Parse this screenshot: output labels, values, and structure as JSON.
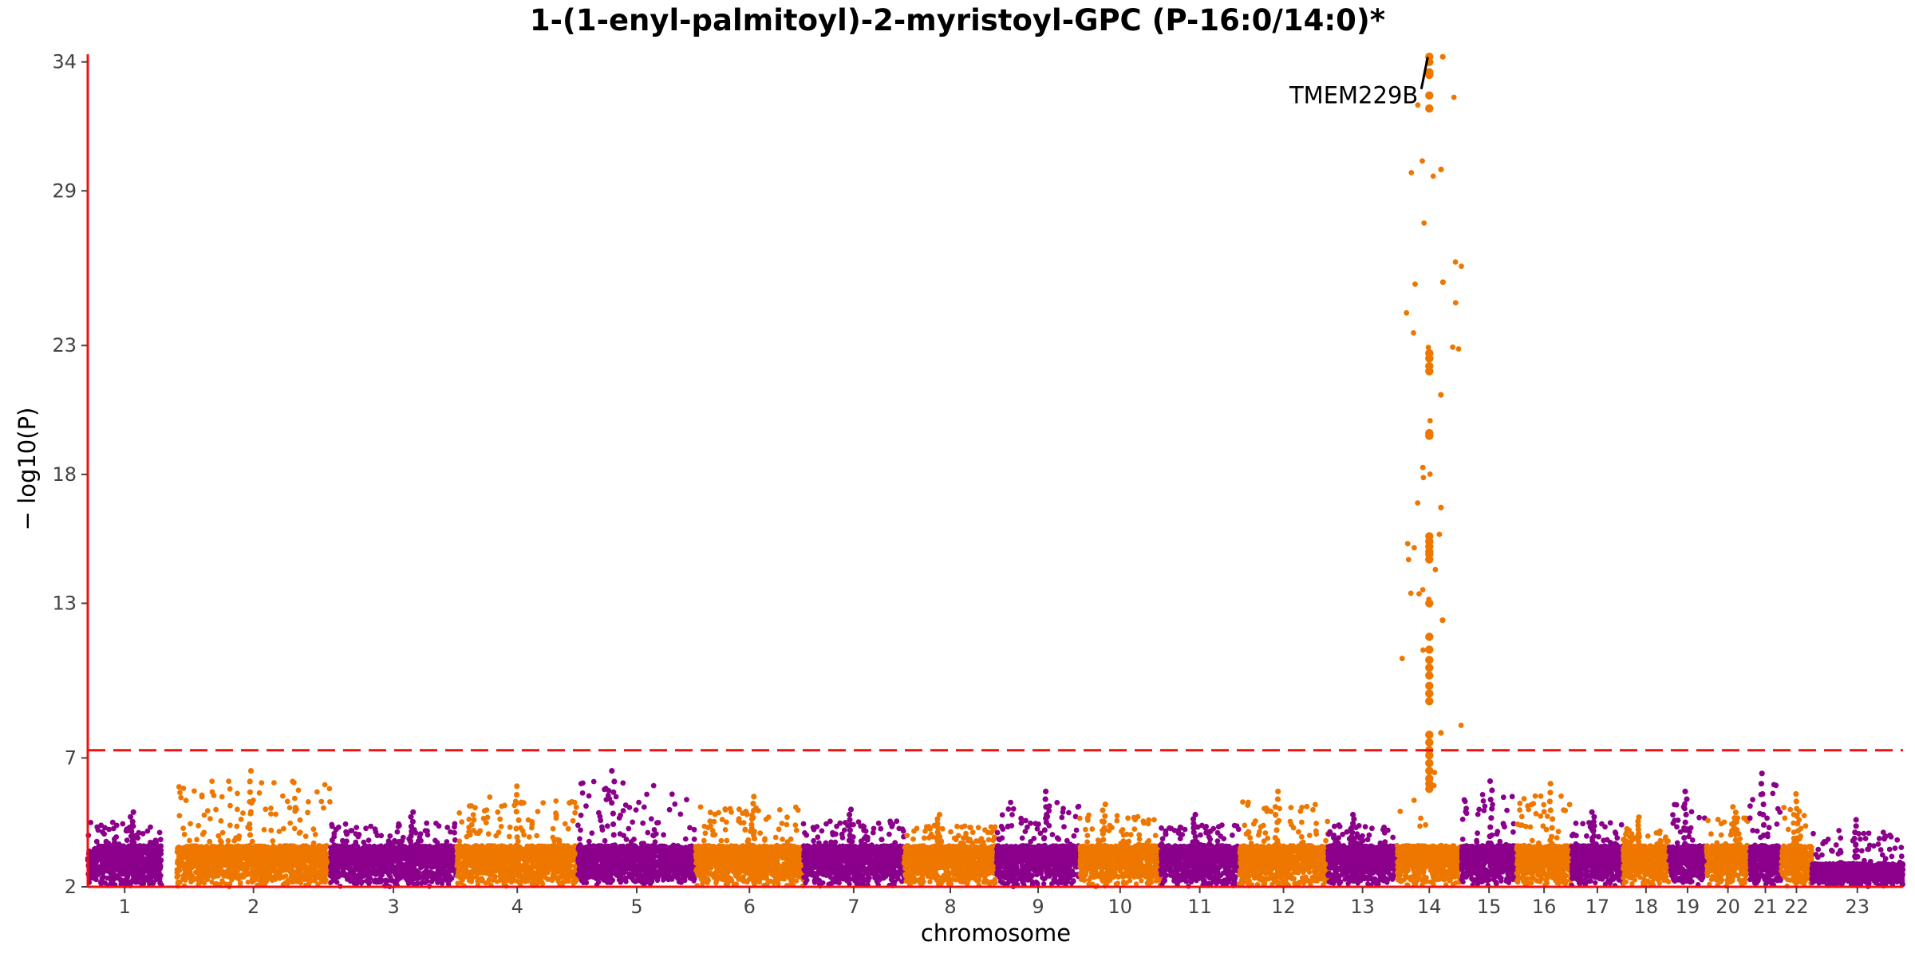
{
  "chart_data": {
    "type": "scatter",
    "subtype": "manhattan",
    "title": "1-(1-enyl-palmitoyl)-2-myristoyl-GPC (P-16:0/14:0)*",
    "xlabel": "chromosome",
    "ylabel": "− log10(P)",
    "ylim": [
      2,
      34.3
    ],
    "yticks": [
      2,
      7,
      13,
      18,
      23,
      29,
      34
    ],
    "significance_line": {
      "y": 7.3,
      "style": "dashed",
      "color": "#ee1111"
    },
    "grid": false,
    "colors": {
      "odd": "#8b008b",
      "even": "#ee7700",
      "axis": "#ee1111"
    },
    "chromosomes": [
      {
        "label": "1",
        "start": 0,
        "end": 126,
        "peak": 4.9
      },
      {
        "label": "2",
        "start": 152,
        "end": 414,
        "peak": 6.5
      },
      {
        "label": "3",
        "start": 414,
        "end": 630,
        "peak": 4.9
      },
      {
        "label": "4",
        "start": 630,
        "end": 837,
        "peak": 5.9
      },
      {
        "label": "5",
        "start": 837,
        "end": 1038,
        "peak": 6.5
      },
      {
        "label": "6",
        "start": 1038,
        "end": 1222,
        "peak": 5.5
      },
      {
        "label": "7",
        "start": 1222,
        "end": 1394,
        "peak": 5.0
      },
      {
        "label": "8",
        "start": 1394,
        "end": 1552,
        "peak": 4.8
      },
      {
        "label": "9",
        "start": 1552,
        "end": 1694,
        "peak": 5.7
      },
      {
        "label": "10",
        "start": 1694,
        "end": 1832,
        "peak": 5.2
      },
      {
        "label": "11",
        "start": 1832,
        "end": 1966,
        "peak": 4.8
      },
      {
        "label": "12",
        "start": 1966,
        "end": 2118,
        "peak": 5.7
      },
      {
        "label": "13",
        "start": 2118,
        "end": 2236,
        "peak": 4.8
      },
      {
        "label": "14",
        "start": 2236,
        "end": 2346,
        "peak": 34.2
      },
      {
        "label": "15",
        "start": 2346,
        "end": 2440,
        "peak": 6.1
      },
      {
        "label": "16",
        "start": 2440,
        "end": 2534,
        "peak": 6.0
      },
      {
        "label": "17",
        "start": 2534,
        "end": 2622,
        "peak": 4.9
      },
      {
        "label": "18",
        "start": 2622,
        "end": 2700,
        "peak": 4.7
      },
      {
        "label": "19",
        "start": 2700,
        "end": 2764,
        "peak": 5.7
      },
      {
        "label": "20",
        "start": 2764,
        "end": 2838,
        "peak": 5.1
      },
      {
        "label": "21",
        "start": 2838,
        "end": 2892,
        "peak": 6.4
      },
      {
        "label": "22",
        "start": 2892,
        "end": 2944,
        "peak": 5.6
      },
      {
        "label": "23",
        "start": 2944,
        "end": 3100,
        "peak": 4.6
      }
    ],
    "top_hits": [
      {
        "chromosome": "14",
        "pos": 2291,
        "y": [
          34.2,
          34.0,
          33.6,
          33.5,
          32.7,
          32.2,
          22.7,
          22.5,
          22.2,
          22.0,
          19.6,
          19.5,
          15.6,
          15.4,
          15.2,
          15.0,
          14.9,
          14.7,
          13.0,
          11.7,
          11.2,
          10.8,
          10.5,
          10.2,
          9.8,
          9.5,
          9.2,
          7.9,
          7.6,
          7.3,
          7.1,
          6.8,
          6.5,
          6.2,
          6.0,
          5.8
        ]
      }
    ],
    "annotations": [
      {
        "text": "TMEM229B",
        "chromosome": "14",
        "y": 34.0
      }
    ]
  }
}
